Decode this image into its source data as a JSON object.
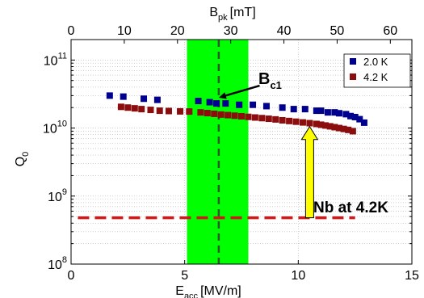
{
  "chart_data": {
    "type": "scatter",
    "title": "",
    "xlabel_main": "E",
    "xlabel_sub": "acc",
    "xlabel_unit": "[MV/m]",
    "x2label_main": "B",
    "x2label_sub": "pk",
    "x2label_unit": "[mT]",
    "ylabel_main": "Q",
    "ylabel_sub": "0",
    "xlim": [
      0,
      15
    ],
    "x2lim": [
      0,
      64.05
    ],
    "ylim": [
      100000000,
      200000000000
    ],
    "yscale": "log",
    "xticks": [
      0,
      5,
      10,
      15
    ],
    "x2ticks": [
      0,
      10,
      20,
      30,
      40,
      50,
      60
    ],
    "yticks": [
      {
        "value": 100000000,
        "base": "10",
        "exp": "8"
      },
      {
        "value": 1000000000,
        "base": "10",
        "exp": "9"
      },
      {
        "value": 10000000000,
        "base": "10",
        "exp": "10"
      },
      {
        "value": 100000000000,
        "base": "10",
        "exp": "11"
      }
    ],
    "grid": true,
    "legend_position": "top-right",
    "series": [
      {
        "name": "2.0 K",
        "color": "#00008f",
        "marker": "square",
        "x": [
          1.7,
          2.3,
          3.2,
          3.8,
          5.6,
          6.1,
          6.4,
          6.8,
          7.4,
          8.0,
          8.6,
          9.3,
          9.8,
          10.3,
          10.8,
          11.0,
          11.3,
          11.6,
          11.8,
          12.1,
          12.3,
          12.5,
          12.7,
          12.9
        ],
        "y": [
          30000000000,
          29000000000,
          27000000000,
          26000000000,
          25000000000,
          24000000000,
          23000000000,
          23000000000,
          22000000000,
          22000000000,
          21000000000,
          20000000000,
          19000000000,
          19000000000,
          18000000000,
          18000000000,
          17000000000,
          17000000000,
          16500000000,
          16000000000,
          15000000000,
          14500000000,
          13500000000,
          12000000000
        ]
      },
      {
        "name": "4.2 K",
        "color": "#8b0d0d",
        "marker": "square",
        "x": [
          2.2,
          2.5,
          2.8,
          3.1,
          3.5,
          3.9,
          4.3,
          4.8,
          5.2,
          5.7,
          6.0,
          6.3,
          6.6,
          6.9,
          7.2,
          7.5,
          7.8,
          8.1,
          8.4,
          8.7,
          9.0,
          9.3,
          9.6,
          9.9,
          10.2,
          10.5,
          10.8,
          11.0,
          11.2,
          11.4,
          11.6,
          11.8,
          12.0,
          12.2,
          12.4
        ],
        "y": [
          20500000000,
          20000000000,
          19500000000,
          19000000000,
          18500000000,
          18000000000,
          17800000000,
          17600000000,
          17500000000,
          17000000000,
          16600000000,
          16200000000,
          15800000000,
          15500000000,
          15200000000,
          14900000000,
          14600000000,
          14300000000,
          14000000000,
          13700000000,
          13400000000,
          13000000000,
          12700000000,
          12400000000,
          12100000000,
          11800000000,
          11500000000,
          11200000000,
          10900000000,
          10600000000,
          10300000000,
          10000000000,
          9700000000,
          9400000000,
          9000000000
        ]
      }
    ],
    "reference_line": {
      "x": [
        0.3,
        12.5
      ],
      "y": 480000000,
      "color": "#cc1a1a"
    },
    "annotations": {
      "band": {
        "x_start": 5.1,
        "x_end": 7.8,
        "color": "#00ff00"
      },
      "bc1_line": {
        "x": 6.5,
        "color": "#2a5a2a"
      },
      "bc1_label_main": "B",
      "bc1_label_sub": "c1",
      "bc1_arrow": {
        "x_from": 8.3,
        "y_from": 42000000000,
        "x_to": 6.5,
        "y_to": 28000000000
      },
      "nb_label": "Nb at 4.2K",
      "nb_label_pos": {
        "x": 10.2,
        "y": 850000000
      },
      "yellow_arrow": {
        "x": 10.5,
        "y_bottom": 480000000,
        "y_top": 10500000000,
        "color": "#ffff00"
      }
    }
  }
}
